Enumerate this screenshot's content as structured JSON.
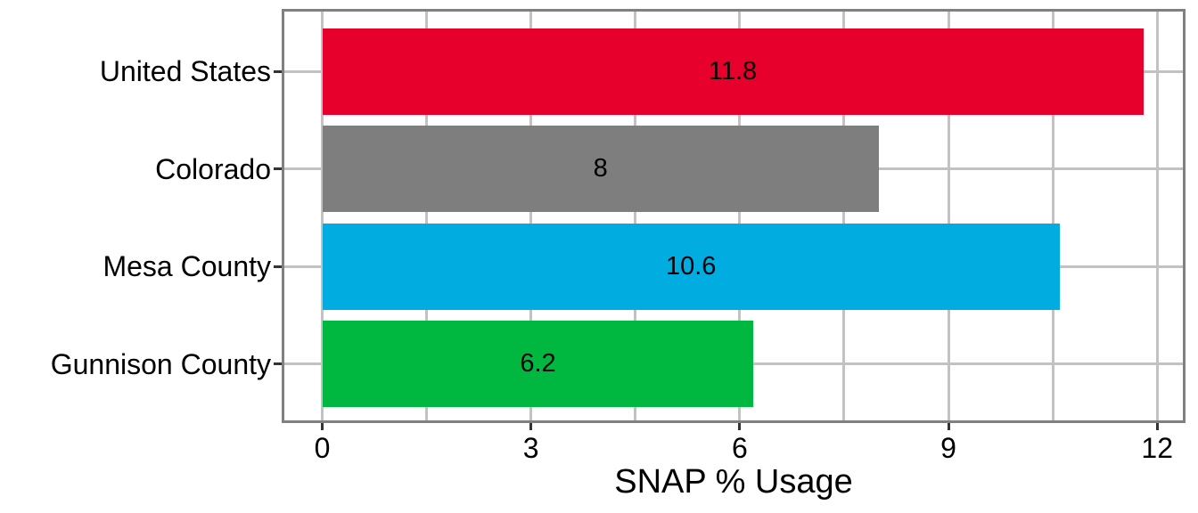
{
  "chart_data": {
    "type": "bar",
    "orientation": "horizontal",
    "title": "",
    "xlabel": "SNAP % Usage",
    "ylabel": "",
    "categories": [
      "United States",
      "Colorado",
      "Mesa County",
      "Gunnison County"
    ],
    "values": [
      11.8,
      8,
      10.6,
      6.2
    ],
    "value_labels": [
      "11.8",
      "8",
      "10.6",
      "6.2"
    ],
    "bar_colors": [
      "#E8002D",
      "#7E7E7E",
      "#00ACE0",
      "#00B840"
    ],
    "xlim": [
      0,
      12
    ],
    "x_major_ticks": [
      0,
      3,
      6,
      9,
      12
    ],
    "x_tick_labels": [
      "0",
      "3",
      "6",
      "9",
      "12"
    ],
    "x_minor_gridlines": [
      1.5,
      4.5,
      7.5,
      10.5
    ],
    "grid": true,
    "legend": false,
    "colors": {
      "gridline": "#C2C2C2",
      "panel_border": "#808080",
      "tick_mark": "#333333",
      "axis_text": "#000000",
      "bar_label_text": "#000000",
      "background": "#FFFFFF"
    }
  }
}
